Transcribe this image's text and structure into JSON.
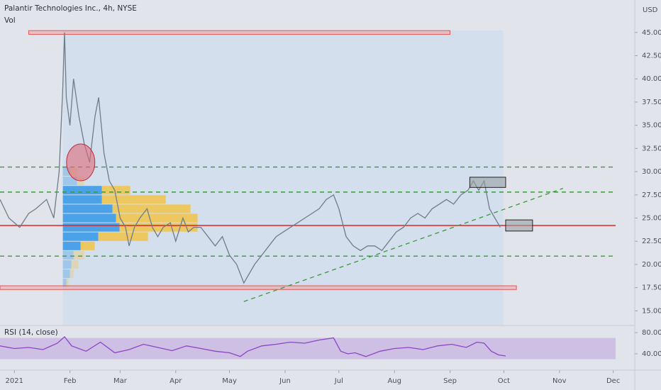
{
  "chart_data": [
    {
      "type": "line",
      "title": "Palantir Technologies Inc., 4h, NYSE",
      "subtitle": "Vol",
      "y_unit": "USD",
      "color": "#6f7c8a",
      "x": [
        -8,
        -3,
        3,
        8,
        12,
        18,
        22,
        25,
        27,
        28,
        29,
        31,
        33,
        36,
        39,
        42,
        45,
        47,
        50,
        53,
        56,
        59,
        62,
        64,
        67,
        70,
        74,
        77,
        80,
        83,
        87,
        90,
        94,
        97,
        100,
        104,
        108,
        112,
        116,
        120,
        124,
        128,
        131,
        134,
        138,
        142,
        146,
        150,
        154,
        158,
        162,
        166,
        170,
        174,
        178,
        181,
        185,
        189,
        193,
        197,
        201,
        205,
        209,
        213,
        217,
        221,
        225,
        229,
        233,
        237,
        241,
        245,
        249,
        253,
        256,
        259,
        262,
        265,
        268,
        271
      ],
      "values": [
        27,
        25,
        24,
        25.5,
        26,
        27,
        25,
        30,
        39,
        45,
        38,
        35,
        40,
        36,
        33,
        31,
        36,
        38,
        32,
        29,
        28,
        25,
        24,
        22,
        24,
        25,
        26,
        24,
        23,
        24,
        24.5,
        22.5,
        25,
        23.5,
        24,
        24,
        23,
        22,
        23,
        21,
        20,
        18,
        19,
        20,
        21,
        22,
        23,
        23.5,
        24,
        24.5,
        25,
        25.5,
        26,
        27,
        27.5,
        26,
        23,
        22,
        21.5,
        22,
        22,
        21.5,
        22.5,
        23.5,
        24,
        25,
        25.5,
        25,
        26,
        26.5,
        27,
        26.5,
        27.5,
        28,
        29,
        28,
        29,
        26,
        25,
        24
      ],
      "xlim": [
        -8,
        346
      ],
      "ylim": [
        13.5,
        48.5
      ],
      "xticks": [
        {
          "value": 0,
          "label": "2021"
        },
        {
          "value": 31,
          "label": "Feb"
        },
        {
          "value": 59,
          "label": "Mar"
        },
        {
          "value": 90,
          "label": "Apr"
        },
        {
          "value": 120,
          "label": "May"
        },
        {
          "value": 151,
          "label": "Jun"
        },
        {
          "value": 181,
          "label": "Jul"
        },
        {
          "value": 212,
          "label": "Aug"
        },
        {
          "value": 243,
          "label": "Sep"
        },
        {
          "value": 273,
          "label": "Oct"
        },
        {
          "value": 304,
          "label": "Nov"
        },
        {
          "value": 334,
          "label": "Dec"
        }
      ],
      "yticks": [
        {
          "value": 45,
          "label": "45.00"
        },
        {
          "value": 42.5,
          "label": "42.50"
        },
        {
          "value": 40,
          "label": "40.00"
        },
        {
          "value": 37.5,
          "label": "37.50"
        },
        {
          "value": 35,
          "label": "35.00"
        },
        {
          "value": 32.5,
          "label": "32.50"
        },
        {
          "value": 30,
          "label": "30.00"
        },
        {
          "value": 27.5,
          "label": "27.50"
        },
        {
          "value": 25,
          "label": "25.00"
        },
        {
          "value": 22.5,
          "label": "22.50"
        },
        {
          "value": 20,
          "label": "20.00"
        },
        {
          "value": 17.5,
          "label": "17.50"
        },
        {
          "value": 15,
          "label": "15.00"
        }
      ],
      "dashed_levels": [
        30.5,
        27.8,
        20.9
      ],
      "support_line": 24.2,
      "zone_boxes": [
        {
          "x": [
            -8,
            280
          ],
          "y": [
            17.3,
            17.7
          ]
        },
        {
          "x": [
            8,
            243
          ],
          "y": [
            44.8,
            45.2
          ]
        }
      ],
      "gray_boxes": [
        {
          "x": [
            254,
            274
          ],
          "y": [
            28.3,
            29.4
          ]
        },
        {
          "x": [
            274,
            289
          ],
          "y": [
            23.6,
            24.8
          ]
        }
      ],
      "trendline": {
        "x": [
          128,
          306
        ],
        "y": [
          16,
          28.2
        ]
      },
      "circle": {
        "x": 37,
        "y": 31
      },
      "volume_profile": {
        "levels": [
          30,
          29,
          28,
          27,
          26,
          25,
          24,
          23,
          22,
          21,
          20,
          19,
          18
        ],
        "up": [
          10,
          20,
          55,
          55,
          70,
          75,
          80,
          50,
          25,
          15,
          12,
          10,
          5
        ],
        "down": [
          10,
          10,
          40,
          90,
          110,
          115,
          110,
          70,
          20,
          15,
          10,
          5,
          3
        ],
        "value_area": [
          22,
          28
        ]
      }
    },
    {
      "type": "line",
      "title": "RSI (14, close)",
      "color": "#8e44c4",
      "x": [
        -8,
        0,
        8,
        16,
        24,
        28,
        32,
        40,
        48,
        56,
        64,
        72,
        80,
        88,
        96,
        104,
        112,
        120,
        126,
        130,
        138,
        146,
        154,
        162,
        170,
        178,
        182,
        186,
        190,
        196,
        204,
        212,
        220,
        228,
        236,
        244,
        252,
        258,
        262,
        266,
        270,
        274
      ],
      "values": [
        55,
        50,
        52,
        48,
        60,
        72,
        55,
        45,
        62,
        42,
        48,
        58,
        52,
        46,
        55,
        50,
        45,
        42,
        35,
        45,
        55,
        58,
        62,
        60,
        66,
        70,
        45,
        40,
        42,
        35,
        45,
        50,
        52,
        48,
        55,
        58,
        52,
        62,
        60,
        45,
        38,
        36
      ],
      "ylim": [
        12,
        92
      ],
      "yticks": [
        {
          "value": 80,
          "label": "80.00"
        },
        {
          "value": 40,
          "label": "40.00"
        }
      ],
      "band": [
        30,
        70
      ]
    }
  ]
}
